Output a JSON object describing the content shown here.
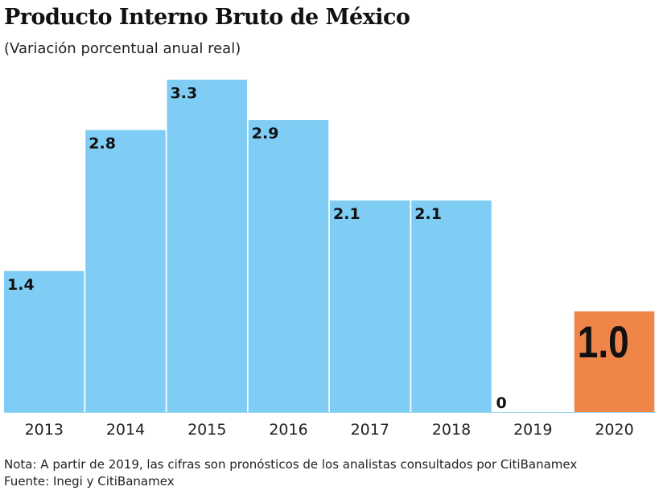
{
  "chart_data": {
    "type": "bar",
    "title": "Producto Interno Bruto de México",
    "subtitle": "(Variación porcentual anual real)",
    "categories": [
      "2013",
      "2014",
      "2015",
      "2016",
      "2017",
      "2018",
      "2019",
      "2020"
    ],
    "values": [
      1.4,
      2.8,
      3.3,
      2.9,
      2.1,
      2.1,
      0,
      1.0
    ],
    "data_labels": [
      "1.4",
      "2.8",
      "3.3",
      "2.9",
      "2.1",
      "2.1",
      "0",
      "1.0"
    ],
    "ylim": [
      0,
      3.3
    ],
    "grid": false,
    "colors": {
      "actual": "#7fcdf4",
      "forecast": "#f0854a"
    },
    "highlighted_category": "2020"
  },
  "notes": {
    "nota": "Nota: A partir de 2019, las cifras son pronósticos de los analistas consultados por CitiBanamex",
    "fuente": "Fuente: Inegi y CitiBanamex"
  }
}
